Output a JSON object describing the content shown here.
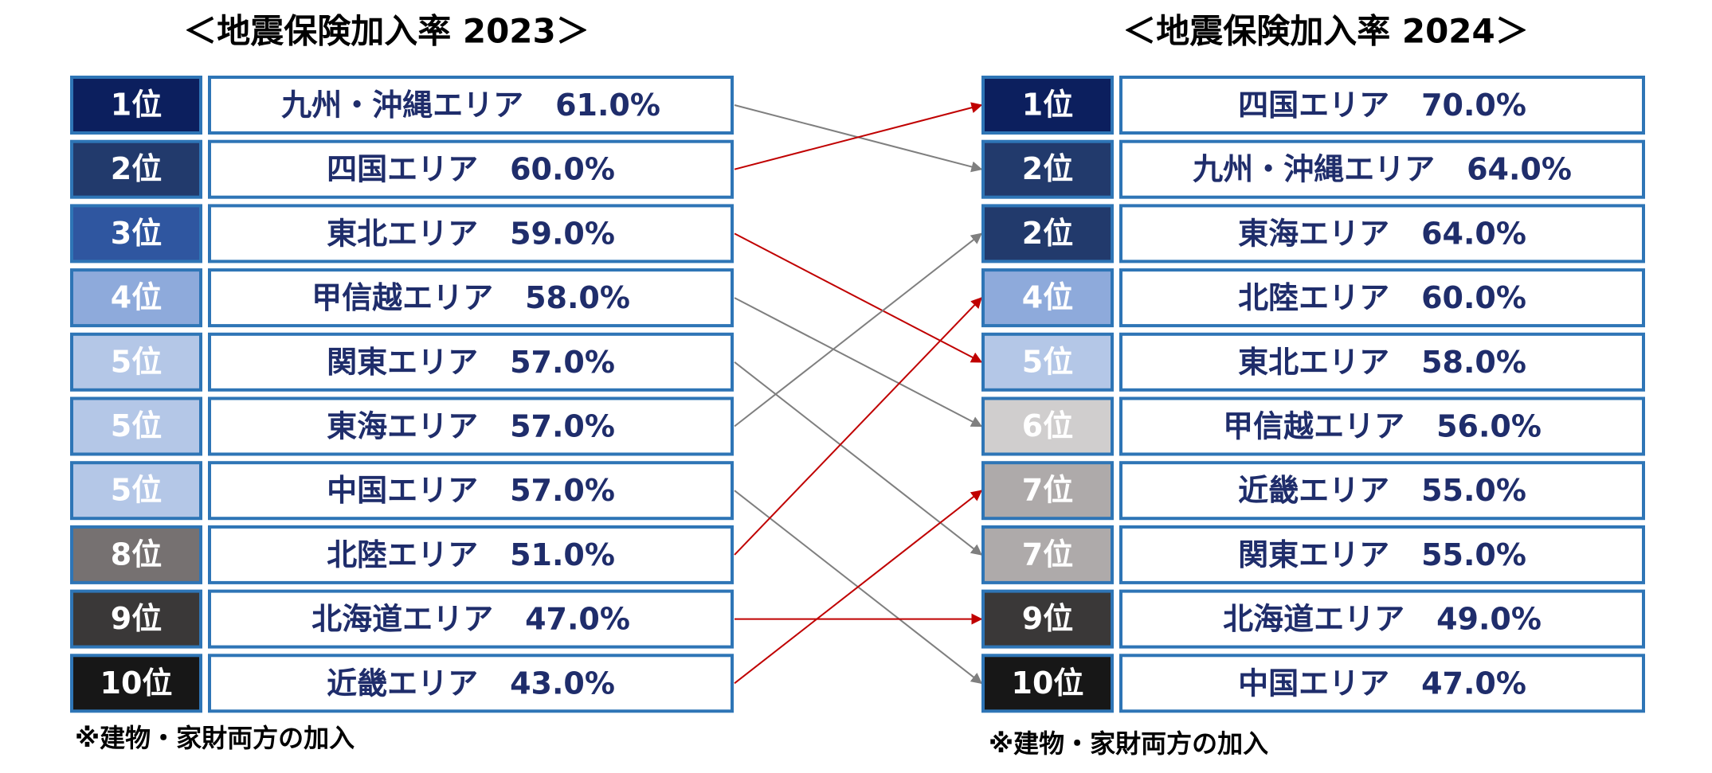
{
  "left": {
    "title": "＜地震保険加入率 2023＞",
    "note": "※建物・家財両方の加入",
    "rows": [
      {
        "rank": "1位",
        "area": "九州・沖縄エリア",
        "rate": "61.0%",
        "color": "#0c1f5e"
      },
      {
        "rank": "2位",
        "area": "四国エリア",
        "rate": "60.0%",
        "color": "#223a6c"
      },
      {
        "rank": "3位",
        "area": "東北エリア",
        "rate": "59.0%",
        "color": "#2f56a0"
      },
      {
        "rank": "4位",
        "area": "甲信越エリア",
        "rate": "58.0%",
        "color": "#8eaadb"
      },
      {
        "rank": "5位",
        "area": "関東エリア",
        "rate": "57.0%",
        "color": "#b4c7e7"
      },
      {
        "rank": "5位",
        "area": "東海エリア",
        "rate": "57.0%",
        "color": "#b4c7e7"
      },
      {
        "rank": "5位",
        "area": "中国エリア",
        "rate": "57.0%",
        "color": "#b4c7e7"
      },
      {
        "rank": "8位",
        "area": "北陸エリア",
        "rate": "51.0%",
        "color": "#767171"
      },
      {
        "rank": "9位",
        "area": "北海道エリア",
        "rate": "47.0%",
        "color": "#3a3838"
      },
      {
        "rank": "10位",
        "area": "近畿エリア",
        "rate": "43.0%",
        "color": "#171717"
      }
    ]
  },
  "right": {
    "title": "＜地震保険加入率 2024＞",
    "note": "※建物・家財両方の加入",
    "rows": [
      {
        "rank": "1位",
        "area": "四国エリア",
        "rate": "70.0%",
        "color": "#0c1f5e"
      },
      {
        "rank": "2位",
        "area": "九州・沖縄エリア",
        "rate": "64.0%",
        "color": "#223a6c"
      },
      {
        "rank": "2位",
        "area": "東海エリア",
        "rate": "64.0%",
        "color": "#223a6c"
      },
      {
        "rank": "4位",
        "area": "北陸エリア",
        "rate": "60.0%",
        "color": "#8eaadb"
      },
      {
        "rank": "5位",
        "area": "東北エリア",
        "rate": "58.0%",
        "color": "#b4c7e7"
      },
      {
        "rank": "6位",
        "area": "甲信越エリア",
        "rate": "56.0%",
        "color": "#d0cece"
      },
      {
        "rank": "7位",
        "area": "近畿エリア",
        "rate": "55.0%",
        "color": "#aeaaaa"
      },
      {
        "rank": "7位",
        "area": "関東エリア",
        "rate": "55.0%",
        "color": "#aeaaaa"
      },
      {
        "rank": "9位",
        "area": "北海道エリア",
        "rate": "49.0%",
        "color": "#3a3838"
      },
      {
        "rank": "10位",
        "area": "中国エリア",
        "rate": "47.0%",
        "color": "#171717"
      }
    ]
  }
}
